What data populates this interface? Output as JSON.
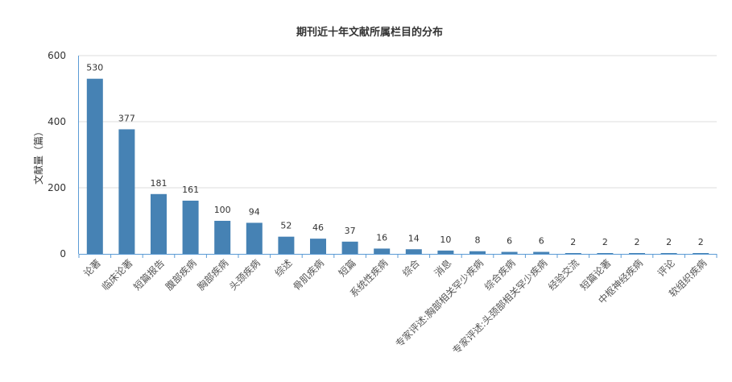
{
  "chart_data": {
    "type": "bar",
    "title": "期刊近十年文献所属栏目的分布",
    "xlabel": "",
    "ylabel": "文献量（篇）",
    "ylim": [
      0,
      600
    ],
    "yticks": [
      0,
      200,
      400,
      600
    ],
    "grid": true,
    "color": "#4682b4",
    "categories": [
      "论著",
      "临床论著",
      "短篇报告",
      "腹部疾病",
      "胸部疾病",
      "头颈疾病",
      "综述",
      "骨肌疾病",
      "短篇",
      "系统性疾病",
      "综合",
      "消息",
      "专家评述:胸部相关罕少疾病",
      "综合疾病",
      "专家评述:头颈部相关罕少疾病",
      "经验交流",
      "短篇论著",
      "中枢神经疾病",
      "评论",
      "软组织疾病"
    ],
    "values": [
      530,
      377,
      181,
      161,
      100,
      94,
      52,
      46,
      37,
      16,
      14,
      10,
      8,
      6,
      6,
      2,
      2,
      2,
      2,
      2
    ]
  }
}
